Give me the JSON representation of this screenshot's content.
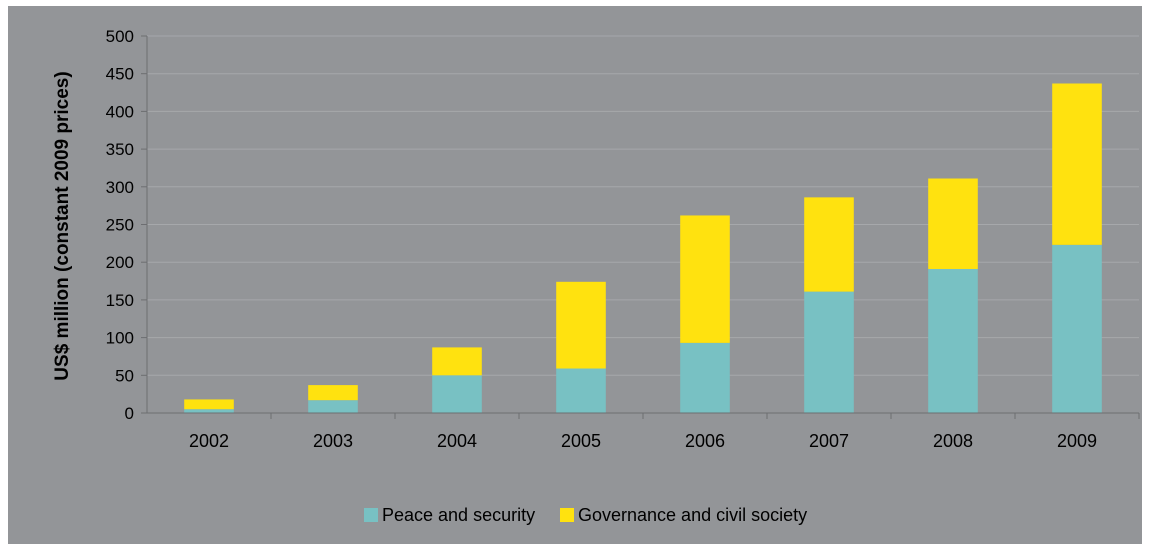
{
  "chart_data": {
    "type": "bar",
    "stacked": true,
    "categories": [
      "2002",
      "2003",
      "2004",
      "2005",
      "2006",
      "2007",
      "2008",
      "2009"
    ],
    "series": [
      {
        "name": "Peace and security",
        "values": [
          5,
          17,
          50,
          59,
          93,
          161,
          191,
          223
        ]
      },
      {
        "name": "Governance and civil society",
        "values": [
          13,
          20,
          37,
          115,
          169,
          125,
          120,
          214
        ]
      }
    ],
    "ylabel": "US$ million (constant 2009 prices)",
    "xlabel": "",
    "ylim": [
      0,
      500
    ],
    "yticks": [
      0,
      50,
      100,
      150,
      200,
      250,
      300,
      350,
      400,
      450,
      500
    ],
    "grid": true,
    "legend": "bottom",
    "colors": {
      "background": "#939598",
      "gridline": "#a6a8ab",
      "axis": "#6d6e71",
      "text": "#000000",
      "series": [
        "#78c1c3",
        "#ffe20f"
      ]
    }
  }
}
